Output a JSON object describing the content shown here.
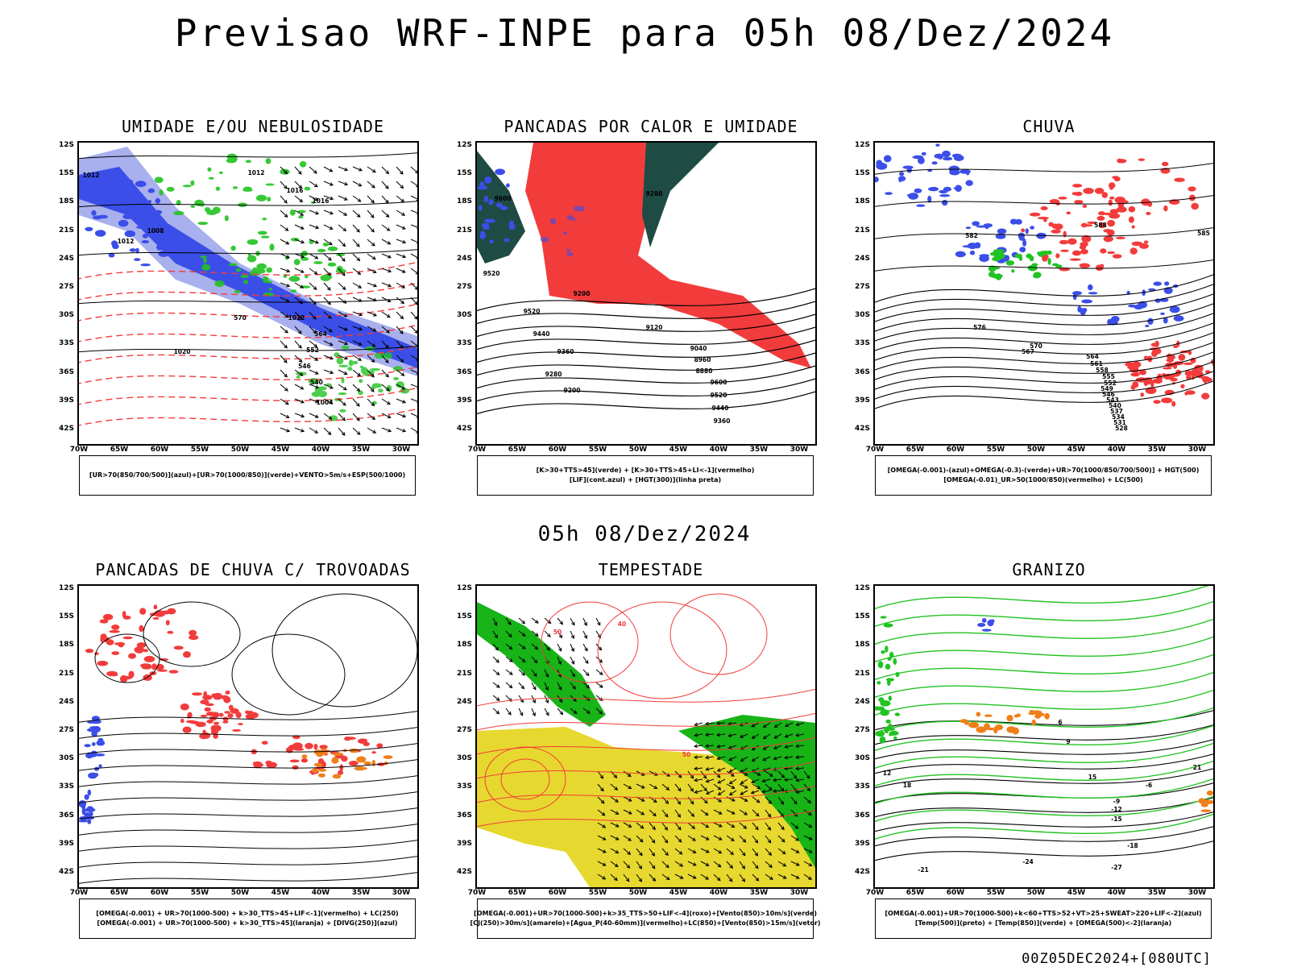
{
  "header": {
    "title": "Previsao WRF-INPE  para 05h 08/Dez/2024"
  },
  "middle_title": "05h 08/Dez/2024",
  "footer": "00Z05DEC2024+[080UTC]",
  "lat_ticks": [
    "12S",
    "15S",
    "18S",
    "21S",
    "24S",
    "27S",
    "30S",
    "33S",
    "36S",
    "39S",
    "42S"
  ],
  "lon_ticks": [
    "70W",
    "65W",
    "60W",
    "55W",
    "50W",
    "45W",
    "40W",
    "35W",
    "30W"
  ],
  "panels": [
    {
      "title": "UMIDADE E/OU NEBULOSIDADE",
      "legend": [
        "[UR>70(850/700/500)](azul)+[UR>70(1000/850)](verde)+VENTO>5m/s+ESP(500/1000)"
      ],
      "contour_labels": [
        "1012",
        "1012",
        "1016",
        "1008",
        "1012",
        "1016",
        "1020",
        "570",
        "564",
        "552",
        "546",
        "540",
        "1004",
        "1012"
      ]
    },
    {
      "title": "PANCADAS POR CALOR E UMIDADE",
      "legend": [
        "[K>30+TTS>45](verde) + [K>30+TTS>45+LI<-1](vermelho)",
        "[LIF](cont.azul) + [HGT(300)](linha preta)"
      ],
      "contour_labels": [
        "9600",
        "9520",
        "9520",
        "9440",
        "9360",
        "9280",
        "9200",
        "9120",
        "9040",
        "8960",
        "8880",
        "9600",
        "9520",
        "9440",
        "9360",
        "9280",
        "9200"
      ]
    },
    {
      "title": "CHUVA",
      "legend": [
        "[OMEGA(-0.001)-(azul)+OMEGA(-0.3)-(verde)+UR>70(1000/850/700/500)] + HGT(500)",
        "[OMEGA(-0.01)_UR>50(1000/850)(vermelho) + LC(500)"
      ],
      "contour_labels": [
        "588",
        "582",
        "576",
        "570",
        "567",
        "564",
        "561",
        "558",
        "555",
        "552",
        "549",
        "546",
        "543",
        "540",
        "537",
        "534",
        "531",
        "528",
        "585"
      ]
    },
    {
      "title": "PANCADAS DE CHUVA C/ TROVOADAS",
      "legend": [
        "[OMEGA(-0.001) + UR>70(1000-500) + k>30_TTS>45+LIF<-1](vermelho) + LC(250)",
        "[OMEGA(-0.001) + UR>70(1000-500) + k>30_TTS>45](laranja) + [DIVG(250)](azul)"
      ],
      "contour_labels": []
    },
    {
      "title": "TEMPESTADE",
      "legend": [
        "[OMEGA(-0.001)+UR>70(1000-500)+k>35_TTS>50+LIF<-4](roxo)+[Vento(850)>10m/s](verde)",
        "[CJ(250)>30m/s](amarelo)+[Agua_P(40-60mm)](vermelho)+LC(850)+[Vento(850)>15m/s](vetor)"
      ],
      "contour_labels": [
        "50",
        "50",
        "40"
      ]
    },
    {
      "title": "GRANIZO",
      "legend": [
        "[OMEGA(-0.001)+UR>70(1000-500)+k<60+TTS>52+VT>25+SWEAT>220+LIF<-2](azul)",
        "[Temp(500)](preto) + [Temp(850)](verde) + [OMEGA(500)<-2](laranja)"
      ],
      "contour_labels": [
        "-6",
        "-9",
        "-12",
        "-15",
        "-18",
        "-21",
        "-24",
        "-27",
        "12",
        "15",
        "18",
        "21",
        "9",
        "6"
      ]
    }
  ],
  "colors": {
    "blue": "#3b4ee8",
    "light_blue": "#a9b0ee",
    "green": "#22c322",
    "red": "#f23c3c",
    "dark_teal": "#1f4b45",
    "orange": "#ef7f1a",
    "yellow": "#e6d82e",
    "bright_green": "#17b317"
  }
}
